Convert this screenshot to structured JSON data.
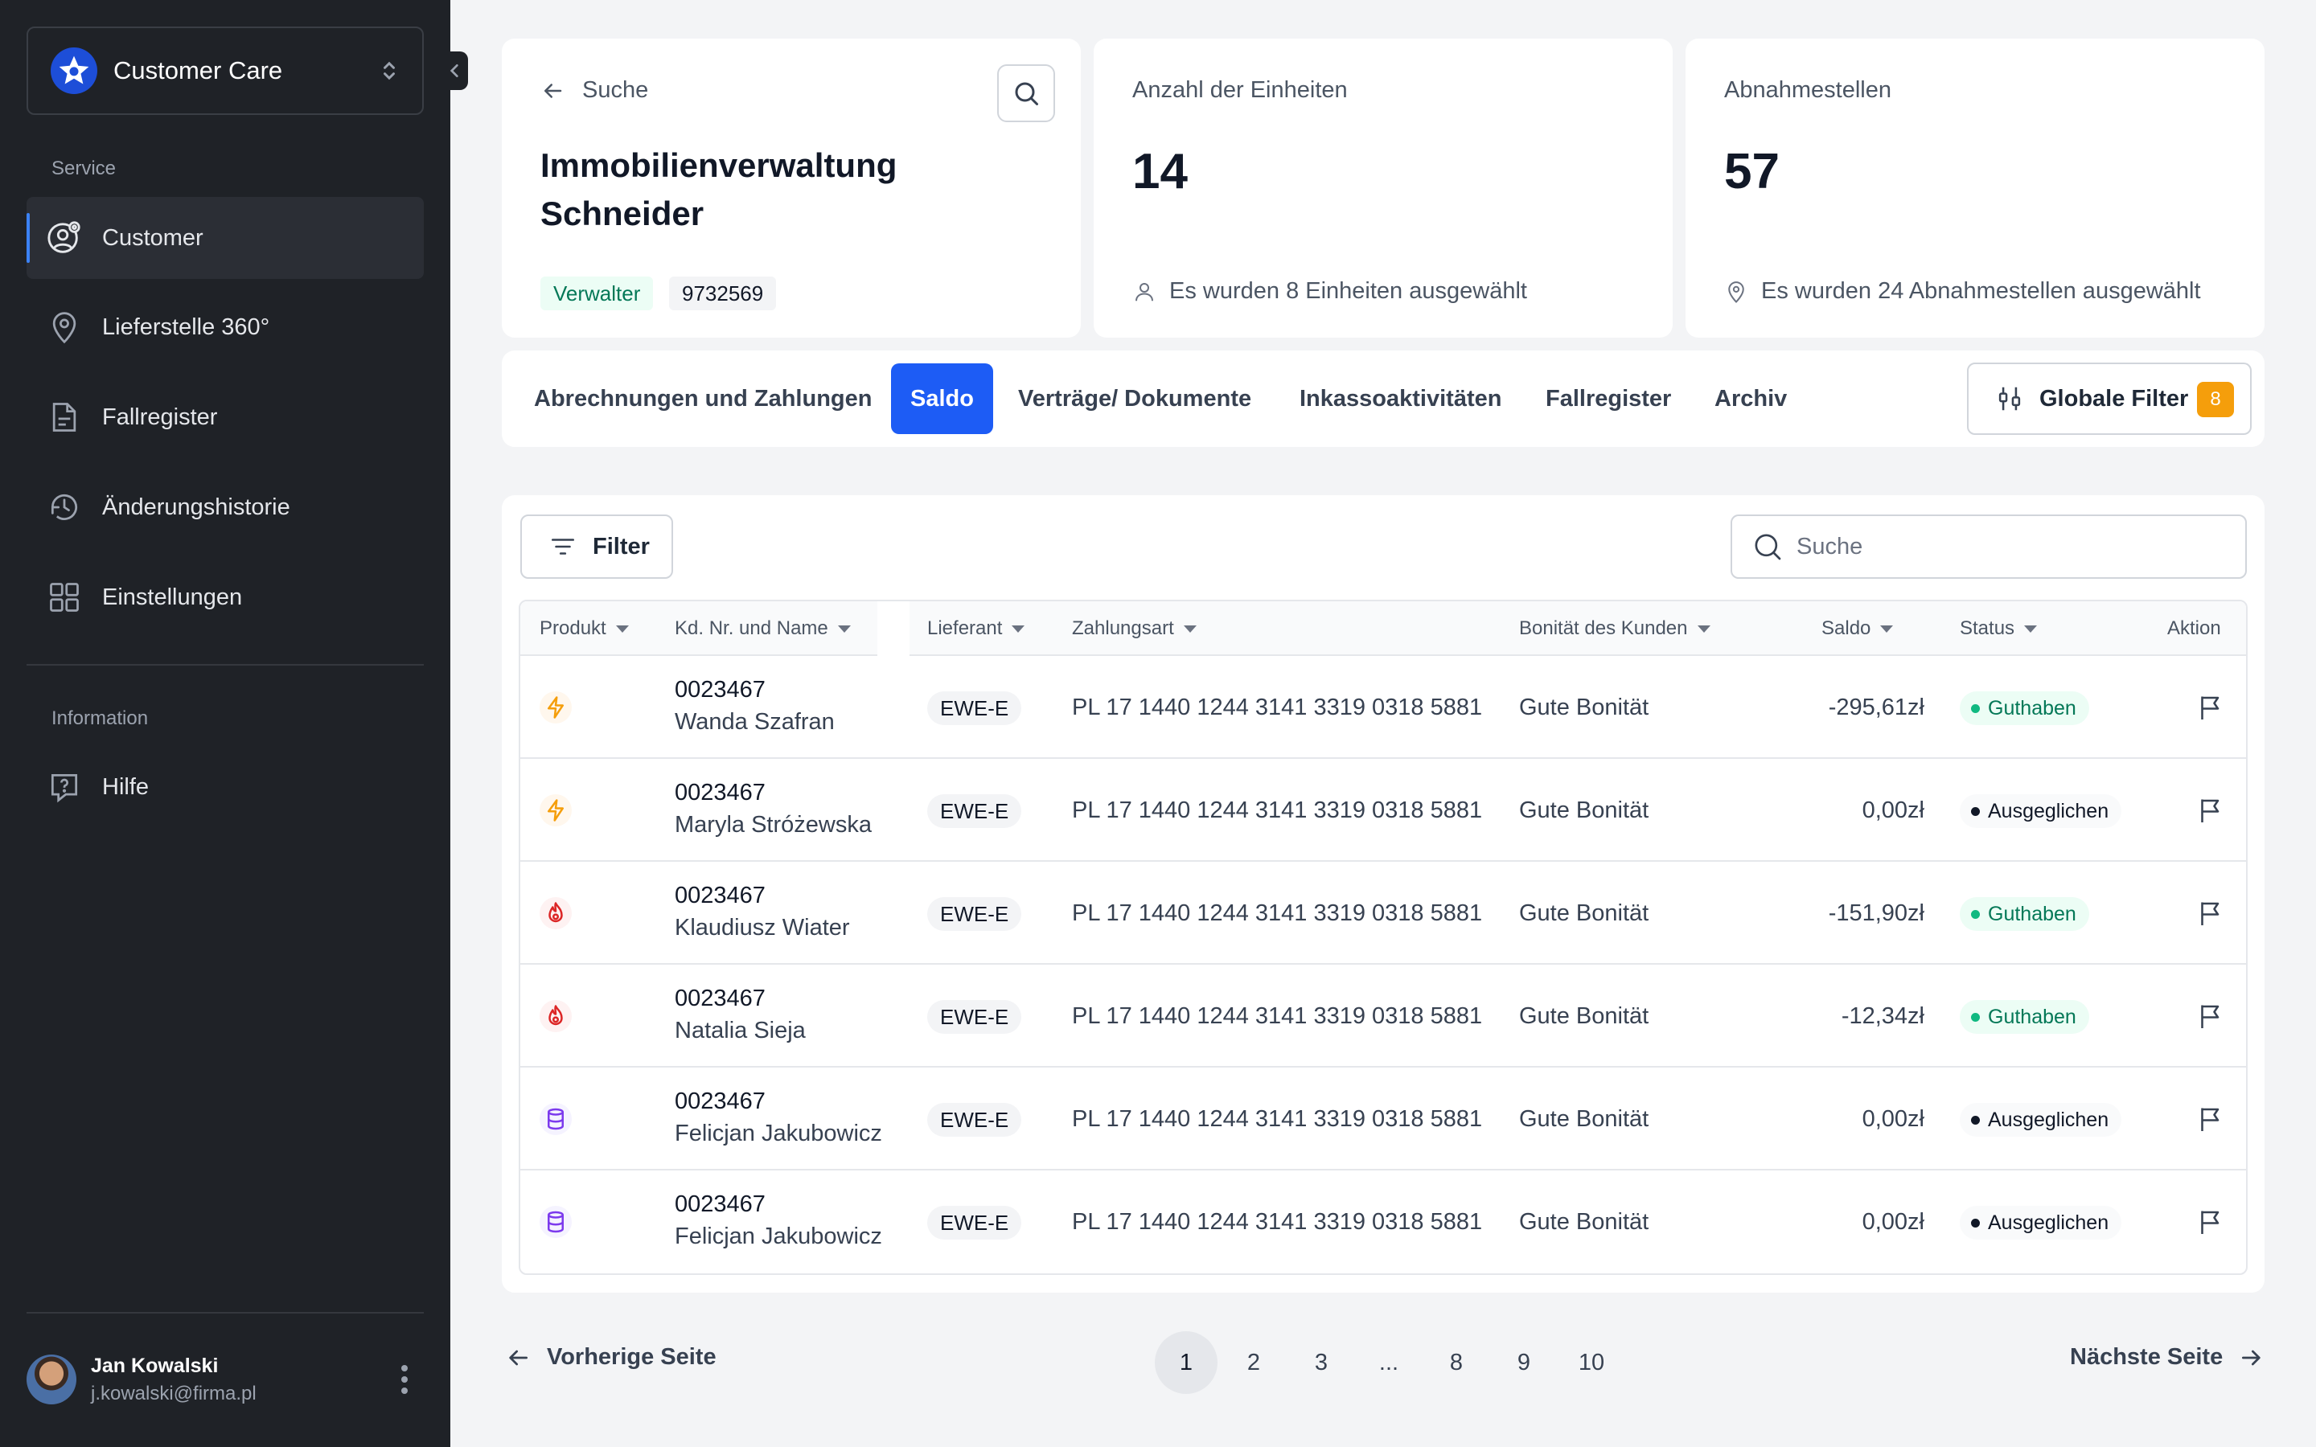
{
  "sidebar": {
    "workspace": "Customer Care",
    "sections": [
      {
        "label": "Service",
        "items": [
          {
            "label": "Customer",
            "icon": "user-gear-icon",
            "active": true
          },
          {
            "label": "Lieferstelle 360°",
            "icon": "map-pin-icon"
          },
          {
            "label": "Fallregister",
            "icon": "document-icon"
          },
          {
            "label": "Änderungshistorie",
            "icon": "history-icon"
          },
          {
            "label": "Einstellungen",
            "icon": "grid-icon"
          }
        ]
      },
      {
        "label": "Information",
        "items": [
          {
            "label": "Hilfe",
            "icon": "help-bubble-icon"
          }
        ]
      }
    ],
    "user": {
      "name": "Jan Kowalski",
      "email": "j.kowalski@firma.pl"
    }
  },
  "customer": {
    "back_label": "Suche",
    "title": "Immobilienverwaltung Schneider",
    "role_badge": "Verwalter",
    "id_badge": "9732569"
  },
  "stats": [
    {
      "label": "Anzahl der Einheiten",
      "value": "14",
      "note": "Es wurden 8 Einheiten ausgewählt",
      "icon": "user-icon"
    },
    {
      "label": "Abnahmestellen",
      "value": "57",
      "note": "Es wurden 24 Abnahmestellen ausgewählt",
      "icon": "map-pin-icon"
    }
  ],
  "tabs": [
    {
      "label": "Abrechnungen und Zahlungen"
    },
    {
      "label": "Saldo",
      "active": true
    },
    {
      "label": "Verträge/ Dokumente"
    },
    {
      "label": "Inkassoaktivitäten"
    },
    {
      "label": "Fallregister"
    },
    {
      "label": "Archiv"
    }
  ],
  "global_filter": {
    "label": "Globale Filter",
    "count": "8"
  },
  "toolbar": {
    "filter_label": "Filter",
    "search_placeholder": "Suche"
  },
  "table": {
    "columns": [
      "Produkt",
      "Kd. Nr. und Name",
      "Lieferant",
      "Zahlungsart",
      "Bonität des Kunden",
      "Saldo",
      "Status",
      "Aktion"
    ],
    "rows": [
      {
        "product": "electricity",
        "id": "0023467",
        "name": "Wanda Szafran",
        "supplier": "EWE-E",
        "payment": "PL 17 1440 1244 3141 3319 0318 5881",
        "credit": "Gute Bonität",
        "saldo": "-295,61zł",
        "status": "Guthaben",
        "status_type": "green"
      },
      {
        "product": "electricity",
        "id": "0023467",
        "name": "Maryla Stróżewska",
        "supplier": "EWE-E",
        "payment": "PL 17 1440 1244 3141 3319 0318 5881",
        "credit": "Gute Bonität",
        "saldo": "0,00zł",
        "status": "Ausgeglichen",
        "status_type": "gray"
      },
      {
        "product": "gas",
        "id": "0023467",
        "name": "Klaudiusz Wiater",
        "supplier": "EWE-E",
        "payment": "PL 17 1440 1244 3141 3319 0318 5881",
        "credit": "Gute Bonität",
        "saldo": "-151,90zł",
        "status": "Guthaben",
        "status_type": "green"
      },
      {
        "product": "gas",
        "id": "0023467",
        "name": "Natalia Sieja",
        "supplier": "EWE-E",
        "payment": "PL 17 1440 1244 3141 3319 0318 5881",
        "credit": "Gute Bonität",
        "saldo": "-12,34zł",
        "status": "Guthaben",
        "status_type": "green"
      },
      {
        "product": "database",
        "id": "0023467",
        "name": "Felicjan Jakubowicz",
        "supplier": "EWE-E",
        "payment": "PL 17 1440 1244 3141 3319 0318 5881",
        "credit": "Gute Bonität",
        "saldo": "0,00zł",
        "status": "Ausgeglichen",
        "status_type": "gray"
      },
      {
        "product": "database",
        "id": "0023467",
        "name": "Felicjan Jakubowicz",
        "supplier": "EWE-E",
        "payment": "PL 17 1440 1244 3141 3319 0318 5881",
        "credit": "Gute Bonität",
        "saldo": "0,00zł",
        "status": "Ausgeglichen",
        "status_type": "gray"
      }
    ]
  },
  "pagination": {
    "prev_label": "Vorherige Seite",
    "next_label": "Nächste Seite",
    "pages": [
      "1",
      "2",
      "3",
      "...",
      "8",
      "9",
      "10"
    ],
    "current": "1"
  },
  "colors": {
    "accent": "#1d5cf5",
    "sidebar_bg": "#1f2227",
    "badge_orange": "#f59e0b",
    "status_green": "#10b981"
  }
}
